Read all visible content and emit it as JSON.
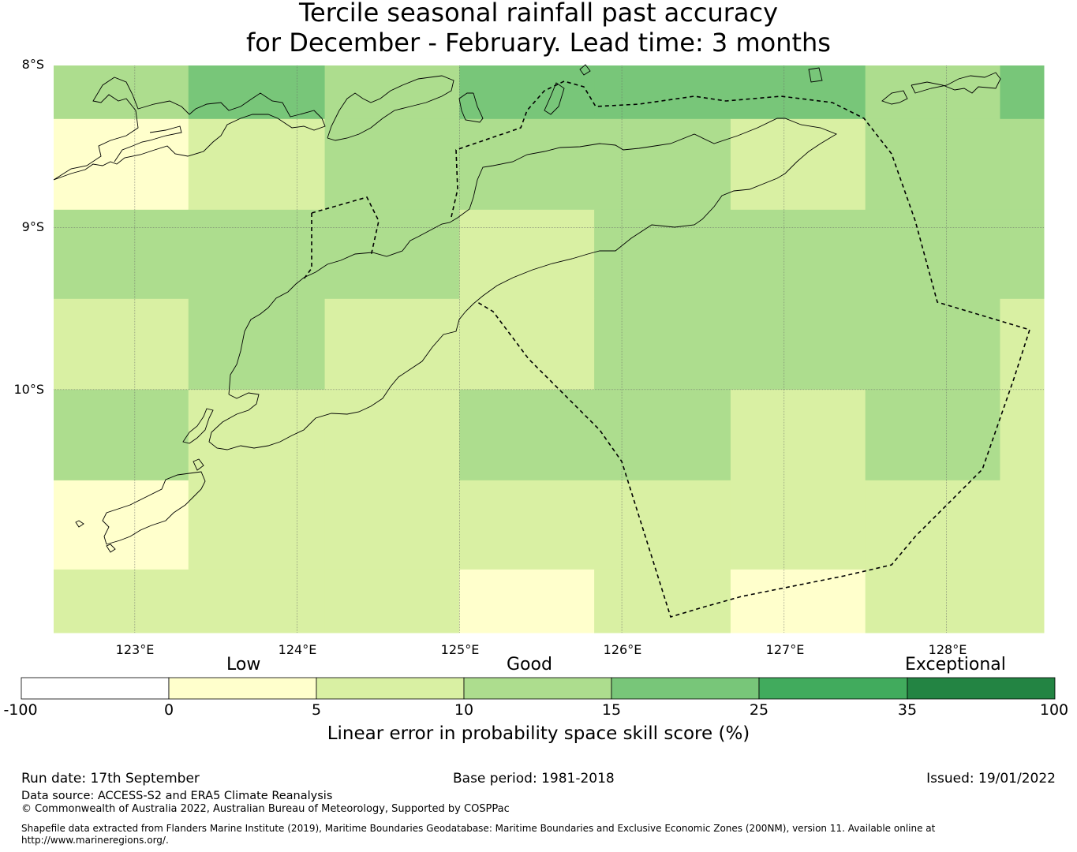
{
  "title_line1": "Tercile seasonal rainfall past accuracy",
  "title_line2": "for December - February. Lead time: 3 months",
  "map": {
    "lon_range": [
      122.5,
      128.6
    ],
    "lat_range": [
      -8.0,
      -11.5
    ],
    "lat_labels": [
      "8°S",
      "9°S",
      "10°S"
    ],
    "lon_labels": [
      "123°E",
      "124°E",
      "125°E",
      "126°E",
      "127°E",
      "128°E"
    ],
    "cell_lon_edges": [
      122.5,
      123.33,
      124.17,
      125.0,
      125.83,
      126.67,
      127.5,
      128.33,
      128.6
    ],
    "cell_lat_edges": [
      -8.0,
      -8.33,
      -8.89,
      -9.44,
      -10.0,
      -10.56,
      -11.11,
      -11.5
    ],
    "skill_grid": [
      [
        12,
        17,
        12,
        17,
        17,
        17,
        12,
        17
      ],
      [
        2,
        7,
        12,
        12,
        12,
        7,
        12,
        12
      ],
      [
        12,
        12,
        12,
        7,
        12,
        12,
        12,
        12
      ],
      [
        7,
        12,
        7,
        7,
        12,
        12,
        12,
        7
      ],
      [
        12,
        7,
        7,
        12,
        12,
        7,
        12,
        7
      ],
      [
        2,
        7,
        7,
        7,
        7,
        7,
        7,
        7
      ],
      [
        7,
        7,
        7,
        2,
        7,
        2,
        7,
        7
      ]
    ],
    "colors": {
      "land_outline": "#000000",
      "gridline": "#666666",
      "boundary": "#000000"
    }
  },
  "colorbar": {
    "bins": [
      {
        "from": -100,
        "to": 0,
        "color": "#ffffff"
      },
      {
        "from": 0,
        "to": 5,
        "color": "#ffffcc"
      },
      {
        "from": 5,
        "to": 10,
        "color": "#d9f0a3"
      },
      {
        "from": 10,
        "to": 15,
        "color": "#addd8e"
      },
      {
        "from": 15,
        "to": 25,
        "color": "#78c679"
      },
      {
        "from": 25,
        "to": 35,
        "color": "#41ab5d"
      },
      {
        "from": 35,
        "to": 100,
        "color": "#238443"
      }
    ],
    "ticks": [
      "-100",
      "0",
      "5",
      "10",
      "15",
      "25",
      "35",
      "100"
    ],
    "categories": [
      "Low",
      "Good",
      "Exceptional"
    ],
    "label": "Linear error in probability space skill score (%)"
  },
  "footer": {
    "run_date": "Run date: 17th September",
    "base_period": "Base period: 1981-2018",
    "issued": "Issued: 19/01/2022",
    "data_source": "Data source: ACCESS-S2 and ERA5 Climate Reanalysis",
    "copyright": "© Commonwealth of Australia 2022, Australian Bureau of Meteorology, Supported by COSPPac",
    "shapefile_line1": "Shapefile data extracted from Flanders Marine Institute (2019), Maritime Boundaries Geodatabase: Maritime Boundaries and Exclusive Economic Zones (200NM), version 11. Available online at",
    "shapefile_line2": "http://www.marineregions.org/."
  }
}
